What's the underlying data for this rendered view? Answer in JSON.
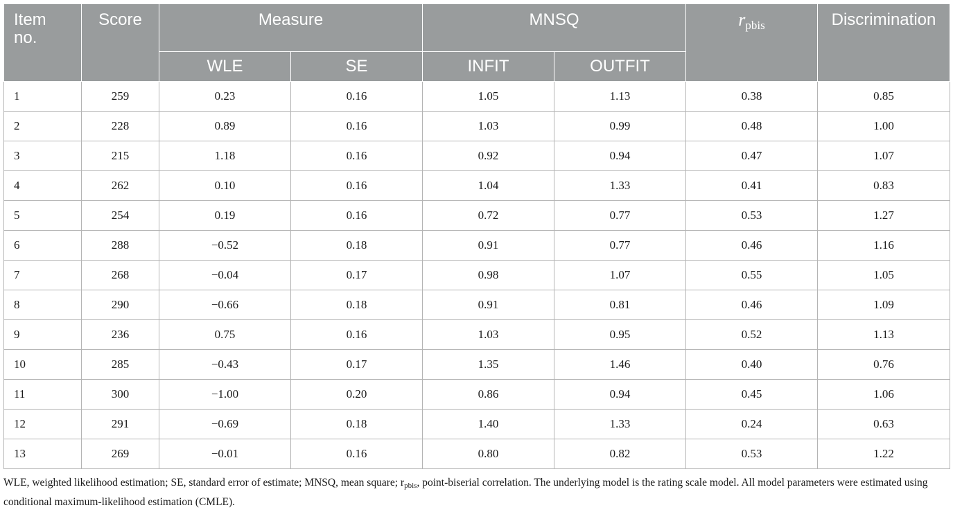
{
  "table": {
    "headers": {
      "item_no": "Item\nno.",
      "score": "Score",
      "measure": "Measure",
      "mnsq": "MNSQ",
      "rpbis_main": "r",
      "rpbis_sub": "pbis",
      "discrimination": "Discrimination",
      "wle": "WLE",
      "se": "SE",
      "infit": "INFIT",
      "outfit": "OUTFIT"
    },
    "rows": [
      [
        "1",
        "259",
        "0.23",
        "0.16",
        "1.05",
        "1.13",
        "0.38",
        "0.85"
      ],
      [
        "2",
        "228",
        "0.89",
        "0.16",
        "1.03",
        "0.99",
        "0.48",
        "1.00"
      ],
      [
        "3",
        "215",
        "1.18",
        "0.16",
        "0.92",
        "0.94",
        "0.47",
        "1.07"
      ],
      [
        "4",
        "262",
        "0.10",
        "0.16",
        "1.04",
        "1.33",
        "0.41",
        "0.83"
      ],
      [
        "5",
        "254",
        "0.19",
        "0.16",
        "0.72",
        "0.77",
        "0.53",
        "1.27"
      ],
      [
        "6",
        "288",
        "−0.52",
        "0.18",
        "0.91",
        "0.77",
        "0.46",
        "1.16"
      ],
      [
        "7",
        "268",
        "−0.04",
        "0.17",
        "0.98",
        "1.07",
        "0.55",
        "1.05"
      ],
      [
        "8",
        "290",
        "−0.66",
        "0.18",
        "0.91",
        "0.81",
        "0.46",
        "1.09"
      ],
      [
        "9",
        "236",
        "0.75",
        "0.16",
        "1.03",
        "0.95",
        "0.52",
        "1.13"
      ],
      [
        "10",
        "285",
        "−0.43",
        "0.17",
        "1.35",
        "1.46",
        "0.40",
        "0.76"
      ],
      [
        "11",
        "300",
        "−1.00",
        "0.20",
        "0.86",
        "0.94",
        "0.45",
        "1.06"
      ],
      [
        "12",
        "291",
        "−0.69",
        "0.18",
        "1.40",
        "1.33",
        "0.24",
        "0.63"
      ],
      [
        "13",
        "269",
        "−0.01",
        "0.16",
        "0.80",
        "0.82",
        "0.53",
        "1.22"
      ]
    ]
  },
  "footnote": {
    "part1": "WLE, weighted likelihood estimation; SE, standard error of estimate; MNSQ, mean square; r",
    "sub": "pbis",
    "part2": ", point-biserial correlation. The underlying model is the rating scale model. All model parameters were estimated using conditional maximum-likelihood estimation (CMLE)."
  },
  "colors": {
    "header_bg": "#999c9d",
    "header_text": "#ffffff",
    "grid": "#b4b4b4"
  }
}
